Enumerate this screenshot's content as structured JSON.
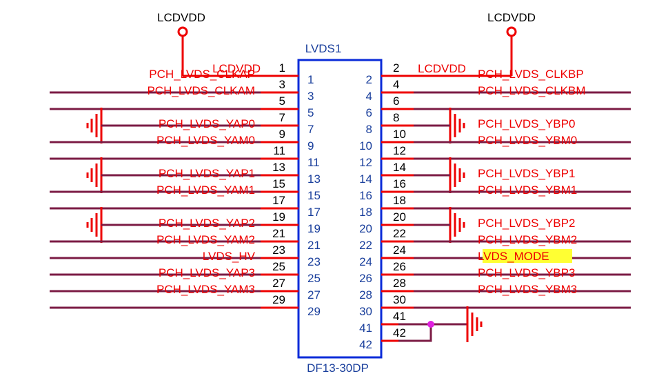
{
  "power": {
    "left": {
      "label": "LCDVDD"
    },
    "right": {
      "label": "LCDVDD"
    }
  },
  "connector": {
    "ref": "LVDS1",
    "part": "DF13-30DP",
    "left_rows": [
      {
        "pin": "1",
        "net": "PCH_LVDS_CLKAP",
        "power_net": "LCDVDD"
      },
      {
        "pin": "3",
        "net": "PCH_LVDS_CLKAM"
      },
      {
        "pin": "5"
      },
      {
        "pin": "7",
        "net": "PCH_LVDS_YAP0"
      },
      {
        "pin": "9",
        "net": "PCH_LVDS_YAM0"
      },
      {
        "pin": "11"
      },
      {
        "pin": "13",
        "net": "PCH_LVDS_YAP1"
      },
      {
        "pin": "15",
        "net": "PCH_LVDS_YAM1"
      },
      {
        "pin": "17"
      },
      {
        "pin": "19",
        "net": "PCH_LVDS_YAP2"
      },
      {
        "pin": "21",
        "net": "PCH_LVDS_YAM2"
      },
      {
        "pin": "23",
        "net": "LVDS_HV"
      },
      {
        "pin": "25",
        "net": "PCH_LVDS_YAP3"
      },
      {
        "pin": "27",
        "net": "PCH_LVDS_YAM3"
      },
      {
        "pin": "29"
      }
    ],
    "right_rows": [
      {
        "pin": "2",
        "net": "PCH_LVDS_CLKBP",
        "power_net": "LCDVDD"
      },
      {
        "pin": "4",
        "net": "PCH_LVDS_CLKBM"
      },
      {
        "pin": "6"
      },
      {
        "pin": "8",
        "net": "PCH_LVDS_YBP0"
      },
      {
        "pin": "10",
        "net": "PCH_LVDS_YBM0"
      },
      {
        "pin": "12"
      },
      {
        "pin": "14",
        "net": "PCH_LVDS_YBP1"
      },
      {
        "pin": "16",
        "net": "PCH_LVDS_YBM1"
      },
      {
        "pin": "18"
      },
      {
        "pin": "20",
        "net": "PCH_LVDS_YBP2"
      },
      {
        "pin": "22",
        "net": "PCH_LVDS_YBM2"
      },
      {
        "pin": "24",
        "net": "LVDS_MODE"
      },
      {
        "pin": "26",
        "net": "PCH_LVDS_YBP3"
      },
      {
        "pin": "28",
        "net": "PCH_LVDS_YBM3"
      },
      {
        "pin": "30"
      },
      {
        "pin": "41"
      },
      {
        "pin": "42"
      }
    ]
  }
}
